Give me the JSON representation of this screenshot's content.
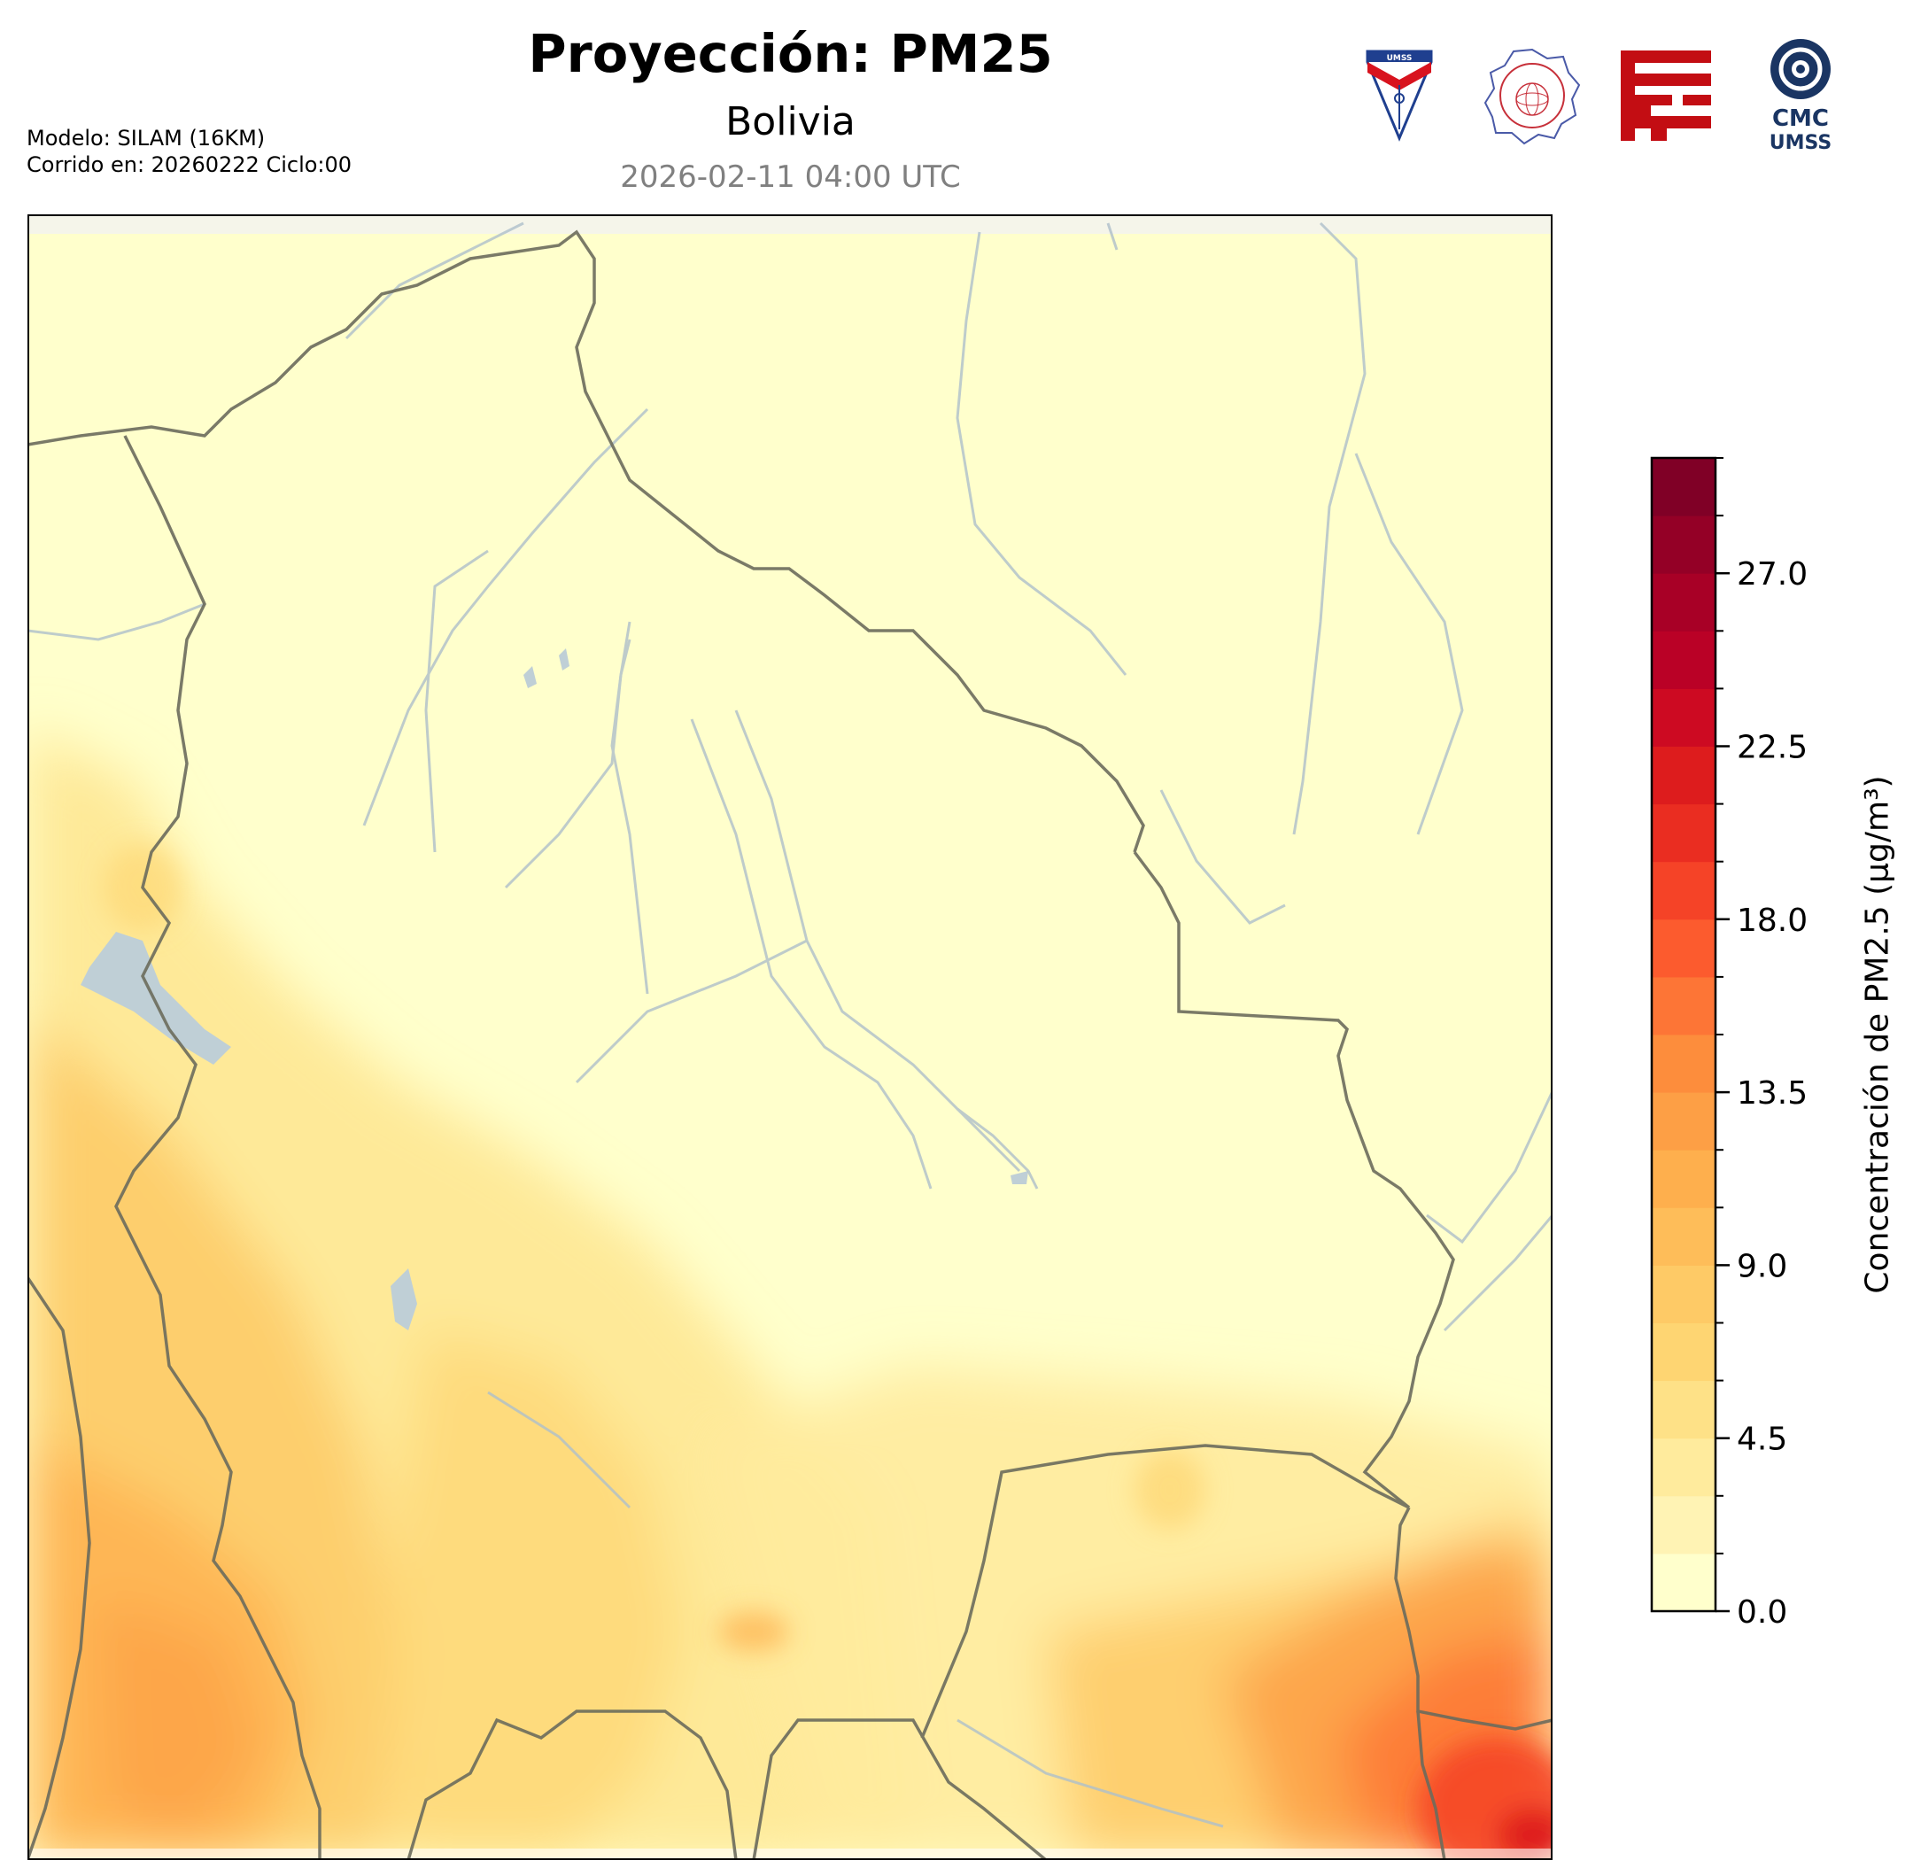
{
  "header": {
    "title": "Proyección: PM25",
    "subtitle": "Bolivia",
    "timestamp": "2026-02-11 04:00 UTC",
    "model": "Modelo: SILAM (16KM)",
    "run": "Corrido en: 20260222 Ciclo:00"
  },
  "logos": [
    {
      "name": "umss-shield",
      "text": "UMSS"
    },
    {
      "name": "departamento-de-fisica-seal",
      "text": "DEPARTAMENTO DE FÍSICA"
    },
    {
      "name": "red-emblem",
      "text": ""
    },
    {
      "name": "cmc-umss",
      "text_top": "CMC",
      "text_bottom": "UMSS"
    }
  ],
  "colorbar": {
    "label": "Concentración de PM2.5 (µg/m³)",
    "ticks": [
      "0.0",
      "4.5",
      "9.0",
      "13.5",
      "18.0",
      "22.5",
      "27.0"
    ],
    "tick_values": [
      0,
      4.5,
      9,
      13.5,
      18,
      22.5,
      27
    ],
    "min": 0,
    "max": 30,
    "step": 1.5,
    "colors": [
      "#ffffcc",
      "#fff3b4",
      "#ffeb9d",
      "#fee187",
      "#fed572",
      "#feca66",
      "#febd59",
      "#feaf4d",
      "#fd9f45",
      "#fd8d3c",
      "#fd7536",
      "#fc5b2e",
      "#f54327",
      "#ea2d21",
      "#dd1c1d",
      "#cd0a22",
      "#ba0126",
      "#a80026",
      "#940026",
      "#800026"
    ]
  },
  "map": {
    "region": "Bolivia",
    "field_level_summary": "low over north/center, higher in southwest and southeast"
  }
}
